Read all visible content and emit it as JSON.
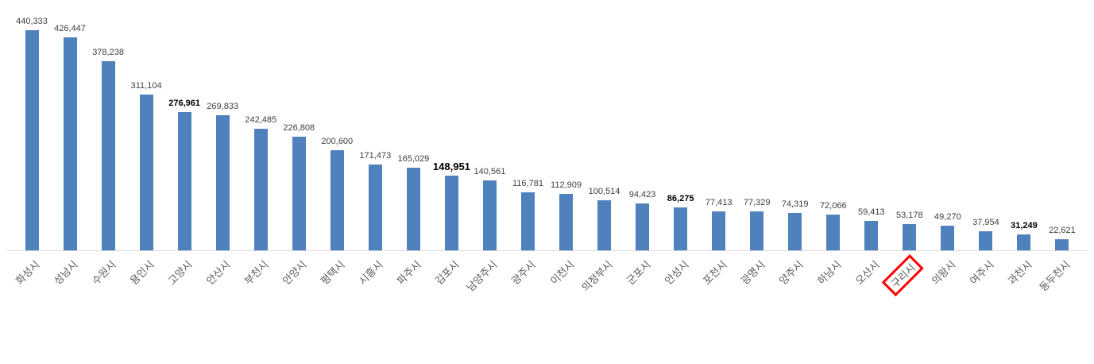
{
  "chart_data": {
    "type": "bar",
    "title": "",
    "xlabel": "",
    "ylabel": "",
    "ylim": [
      0,
      460000
    ],
    "grid": "off",
    "legend": "none",
    "bar_color": "#4f81bd",
    "axis_line_color": "#d9d9d9",
    "value_label_color": "#3f3f3f",
    "category_label_color": "#595959",
    "highlight_color": "#ff0000",
    "categories": [
      "화성시",
      "성남시",
      "수원시",
      "용인시",
      "고양시",
      "안산시",
      "부천시",
      "안양시",
      "평택시",
      "시흥시",
      "파주시",
      "김포시",
      "남양주시",
      "광주시",
      "이천시",
      "의정부시",
      "군포시",
      "안성시",
      "포천시",
      "광명시",
      "양주시",
      "하남시",
      "오산시",
      "구리시",
      "의왕시",
      "여주시",
      "과천시",
      "동두천시"
    ],
    "values": [
      440333,
      426447,
      378238,
      311104,
      276961,
      269833,
      242485,
      226808,
      200600,
      171473,
      165029,
      148951,
      140561,
      116781,
      112909,
      100514,
      94423,
      86275,
      77413,
      77329,
      74319,
      72066,
      59413,
      53178,
      49270,
      37954,
      31249,
      22621
    ],
    "value_labels": [
      "440,333",
      "426,447",
      "378,238",
      "311,104",
      "276,961",
      "269,833",
      "242,485",
      "226,808",
      "200,600",
      "171,473",
      "165,029",
      "148,951",
      "140,561",
      "116,781",
      "112,909",
      "100,514",
      "94,423",
      "86,275",
      "77,413",
      "77,329",
      "74,319",
      "72,066",
      "59,413",
      "53,178",
      "49,270",
      "37,954",
      "31,249",
      "22,621"
    ],
    "bold_value_indexes": [
      4,
      11,
      17,
      26
    ],
    "large_value_indexes": [
      11
    ],
    "highlighted_category": "구리시",
    "highlight_index": 23
  }
}
